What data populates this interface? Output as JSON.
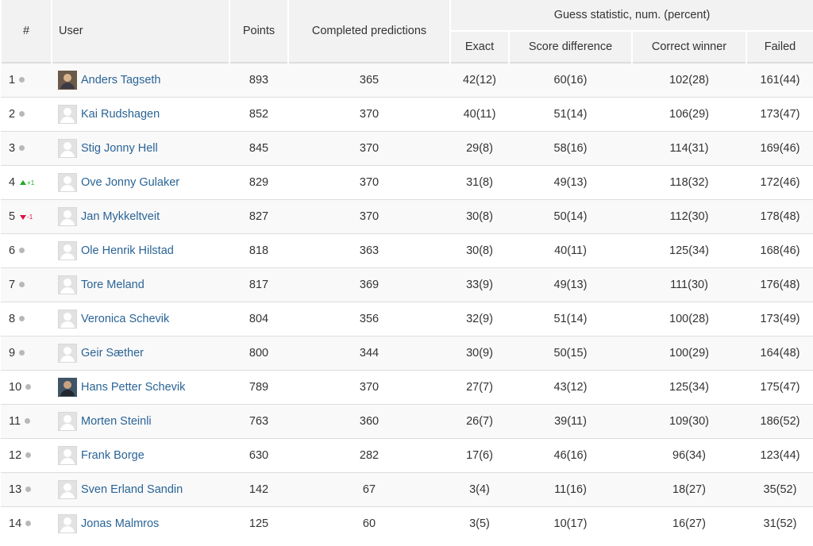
{
  "header": {
    "rank": "#",
    "user": "User",
    "points": "Points",
    "completed": "Completed predictions",
    "guess_group": "Guess statistic, num. (percent)",
    "exact": "Exact",
    "score_difference": "Score difference",
    "correct_winner": "Correct winner",
    "failed": "Failed"
  },
  "colors": {
    "link": "#2a6496",
    "up": "#22aa22",
    "down": "#dd1144",
    "neutral_dot": "#b8b8b8"
  },
  "rows": [
    {
      "rank": "1",
      "trend": "same",
      "change": "",
      "avatar": "photo",
      "name": "Anders Tagseth",
      "points": "893",
      "completed": "365",
      "exact": "42(12)",
      "score_diff": "60(16)",
      "winner": "102(28)",
      "failed": "161(44)"
    },
    {
      "rank": "2",
      "trend": "same",
      "change": "",
      "avatar": "default",
      "name": "Kai Rudshagen",
      "points": "852",
      "completed": "370",
      "exact": "40(11)",
      "score_diff": "51(14)",
      "winner": "106(29)",
      "failed": "173(47)"
    },
    {
      "rank": "3",
      "trend": "same",
      "change": "",
      "avatar": "default",
      "name": "Stig Jonny Hell",
      "points": "845",
      "completed": "370",
      "exact": "29(8)",
      "score_diff": "58(16)",
      "winner": "114(31)",
      "failed": "169(46)"
    },
    {
      "rank": "4",
      "trend": "up",
      "change": "+1",
      "avatar": "default",
      "name": "Ove Jonny Gulaker",
      "points": "829",
      "completed": "370",
      "exact": "31(8)",
      "score_diff": "49(13)",
      "winner": "118(32)",
      "failed": "172(46)"
    },
    {
      "rank": "5",
      "trend": "down",
      "change": "-1",
      "avatar": "default",
      "name": "Jan Mykkeltveit",
      "points": "827",
      "completed": "370",
      "exact": "30(8)",
      "score_diff": "50(14)",
      "winner": "112(30)",
      "failed": "178(48)"
    },
    {
      "rank": "6",
      "trend": "same",
      "change": "",
      "avatar": "default",
      "name": "Ole Henrik Hilstad",
      "points": "818",
      "completed": "363",
      "exact": "30(8)",
      "score_diff": "40(11)",
      "winner": "125(34)",
      "failed": "168(46)"
    },
    {
      "rank": "7",
      "trend": "same",
      "change": "",
      "avatar": "default",
      "name": "Tore Meland",
      "points": "817",
      "completed": "369",
      "exact": "33(9)",
      "score_diff": "49(13)",
      "winner": "111(30)",
      "failed": "176(48)"
    },
    {
      "rank": "8",
      "trend": "same",
      "change": "",
      "avatar": "default",
      "name": "Veronica Schevik",
      "points": "804",
      "completed": "356",
      "exact": "32(9)",
      "score_diff": "51(14)",
      "winner": "100(28)",
      "failed": "173(49)"
    },
    {
      "rank": "9",
      "trend": "same",
      "change": "",
      "avatar": "default",
      "name": "Geir Sæther",
      "points": "800",
      "completed": "344",
      "exact": "30(9)",
      "score_diff": "50(15)",
      "winner": "100(29)",
      "failed": "164(48)"
    },
    {
      "rank": "10",
      "trend": "same",
      "change": "",
      "avatar": "photo2",
      "name": "Hans Petter Schevik",
      "points": "789",
      "completed": "370",
      "exact": "27(7)",
      "score_diff": "43(12)",
      "winner": "125(34)",
      "failed": "175(47)"
    },
    {
      "rank": "11",
      "trend": "same",
      "change": "",
      "avatar": "default",
      "name": "Morten Steinli",
      "points": "763",
      "completed": "360",
      "exact": "26(7)",
      "score_diff": "39(11)",
      "winner": "109(30)",
      "failed": "186(52)"
    },
    {
      "rank": "12",
      "trend": "same",
      "change": "",
      "avatar": "default",
      "name": "Frank Borge",
      "points": "630",
      "completed": "282",
      "exact": "17(6)",
      "score_diff": "46(16)",
      "winner": "96(34)",
      "failed": "123(44)"
    },
    {
      "rank": "13",
      "trend": "same",
      "change": "",
      "avatar": "default",
      "name": "Sven Erland Sandin",
      "points": "142",
      "completed": "67",
      "exact": "3(4)",
      "score_diff": "11(16)",
      "winner": "18(27)",
      "failed": "35(52)"
    },
    {
      "rank": "14",
      "trend": "same",
      "change": "",
      "avatar": "default",
      "name": "Jonas Malmros",
      "points": "125",
      "completed": "60",
      "exact": "3(5)",
      "score_diff": "10(17)",
      "winner": "16(27)",
      "failed": "31(52)"
    }
  ]
}
